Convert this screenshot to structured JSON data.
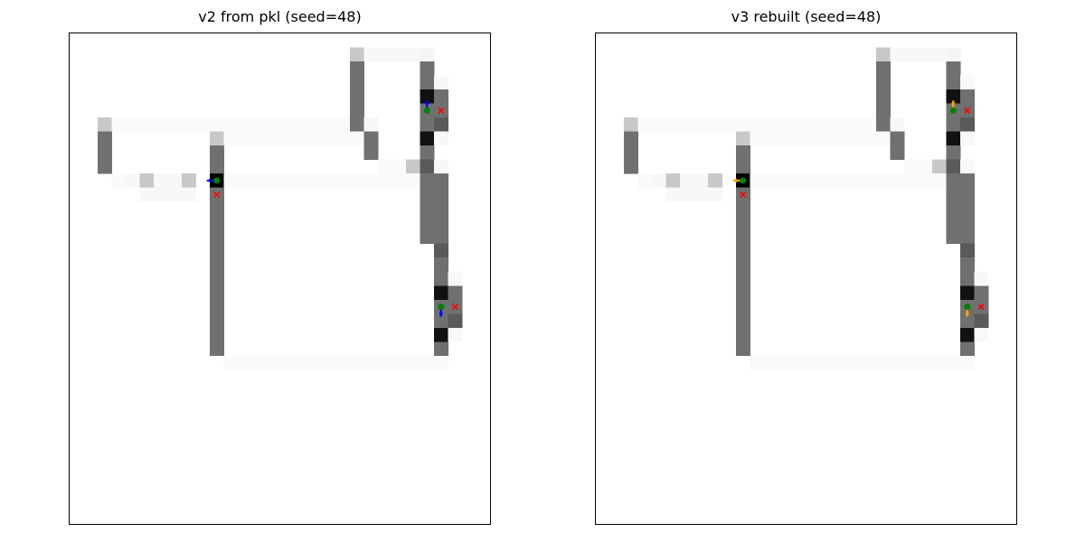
{
  "panels": [
    {
      "title": "v2 from pkl (seed=48)",
      "arrow_color": "#0000ff",
      "agents": [
        {
          "pos": [
            6.5,
            7.5
          ],
          "dir": "left",
          "target": [
            6.5,
            8.5
          ]
        },
        {
          "pos": [
            21.5,
            2.5
          ],
          "dir": "up",
          "target": [
            22.5,
            2.5
          ]
        },
        {
          "pos": [
            22.5,
            16.5
          ],
          "dir": "down",
          "target": [
            23.5,
            16.5
          ]
        }
      ]
    },
    {
      "title": "v3 rebuilt (seed=48)",
      "arrow_color": "#ffa500",
      "agents": [
        {
          "pos": [
            6.5,
            7.5
          ],
          "dir": "left",
          "target": [
            6.5,
            8.5
          ]
        },
        {
          "pos": [
            21.5,
            2.5
          ],
          "dir": "up",
          "target": [
            22.5,
            2.5
          ]
        },
        {
          "pos": [
            22.5,
            16.5
          ],
          "dir": "down",
          "target": [
            23.5,
            16.5
          ]
        }
      ]
    }
  ],
  "grid": {
    "x_range": [
      -4,
      26
    ],
    "y_range": [
      -3,
      32
    ],
    "agent_color": "#008000",
    "target_color": "#ff0000",
    "cells": [
      [
        16,
        -2,
        "#c8c8c8"
      ],
      [
        17,
        -2,
        "#f8f8f8"
      ],
      [
        18,
        -2,
        "#f8f8f8"
      ],
      [
        19,
        -2,
        "#f8f8f8"
      ],
      [
        20,
        -2,
        "#f8f8f8"
      ],
      [
        21,
        -2,
        "#f5f5f5"
      ],
      [
        16,
        -1,
        "#707070"
      ],
      [
        21,
        -1,
        "#707070"
      ],
      [
        16,
        0,
        "#707070"
      ],
      [
        21,
        0,
        "#707070"
      ],
      [
        22,
        0,
        "#f8f8f8"
      ],
      [
        16,
        1,
        "#707070"
      ],
      [
        21,
        1,
        "#111111"
      ],
      [
        22,
        1,
        "#707070"
      ],
      [
        16,
        2,
        "#707070"
      ],
      [
        21,
        2,
        "#707070"
      ],
      [
        22,
        2,
        "#707070"
      ],
      [
        -2,
        3,
        "#c8c8c8"
      ],
      [
        -1,
        3,
        "#fafafa"
      ],
      [
        0,
        3,
        "#fafafa"
      ],
      [
        1,
        3,
        "#fafafa"
      ],
      [
        2,
        3,
        "#fafafa"
      ],
      [
        3,
        3,
        "#fafafa"
      ],
      [
        4,
        3,
        "#fafafa"
      ],
      [
        5,
        3,
        "#fafafa"
      ],
      [
        6,
        3,
        "#fafafa"
      ],
      [
        7,
        3,
        "#fafafa"
      ],
      [
        8,
        3,
        "#fafafa"
      ],
      [
        9,
        3,
        "#fafafa"
      ],
      [
        10,
        3,
        "#fafafa"
      ],
      [
        11,
        3,
        "#fafafa"
      ],
      [
        12,
        3,
        "#fafafa"
      ],
      [
        13,
        3,
        "#fafafa"
      ],
      [
        14,
        3,
        "#fafafa"
      ],
      [
        15,
        3,
        "#fafafa"
      ],
      [
        16,
        3,
        "#707070"
      ],
      [
        17,
        3,
        "#f8f8f8"
      ],
      [
        21,
        3,
        "#707070"
      ],
      [
        22,
        3,
        "#5a5a5a"
      ],
      [
        -2,
        4,
        "#707070"
      ],
      [
        6,
        4,
        "#c8c8c8"
      ],
      [
        7,
        4,
        "#fafafa"
      ],
      [
        8,
        4,
        "#fafafa"
      ],
      [
        9,
        4,
        "#fafafa"
      ],
      [
        10,
        4,
        "#fafafa"
      ],
      [
        11,
        4,
        "#fafafa"
      ],
      [
        12,
        4,
        "#fafafa"
      ],
      [
        13,
        4,
        "#fafafa"
      ],
      [
        14,
        4,
        "#fafafa"
      ],
      [
        15,
        4,
        "#fafafa"
      ],
      [
        16,
        4,
        "#fafafa"
      ],
      [
        17,
        4,
        "#707070"
      ],
      [
        21,
        4,
        "#111111"
      ],
      [
        22,
        4,
        "#f8f8f8"
      ],
      [
        -2,
        5,
        "#707070"
      ],
      [
        6,
        5,
        "#707070"
      ],
      [
        17,
        5,
        "#707070"
      ],
      [
        21,
        5,
        "#707070"
      ],
      [
        -2,
        6,
        "#707070"
      ],
      [
        6,
        6,
        "#707070"
      ],
      [
        18,
        6,
        "#fafafa"
      ],
      [
        19,
        6,
        "#fafafa"
      ],
      [
        20,
        6,
        "#c8c8c8"
      ],
      [
        21,
        6,
        "#5a5a5a"
      ],
      [
        22,
        6,
        "#f8f8f8"
      ],
      [
        -1,
        7,
        "#fafafa"
      ],
      [
        0,
        7,
        "#f8f8f8"
      ],
      [
        1,
        7,
        "#c8c8c8"
      ],
      [
        2,
        7,
        "#f8f8f8"
      ],
      [
        3,
        7,
        "#f8f8f8"
      ],
      [
        4,
        7,
        "#c8c8c8"
      ],
      [
        6,
        7,
        "#000000"
      ],
      [
        7,
        7,
        "#fafafa"
      ],
      [
        8,
        7,
        "#fafafa"
      ],
      [
        9,
        7,
        "#fafafa"
      ],
      [
        10,
        7,
        "#fafafa"
      ],
      [
        11,
        7,
        "#fafafa"
      ],
      [
        12,
        7,
        "#fafafa"
      ],
      [
        13,
        7,
        "#fafafa"
      ],
      [
        14,
        7,
        "#fafafa"
      ],
      [
        15,
        7,
        "#fafafa"
      ],
      [
        16,
        7,
        "#fafafa"
      ],
      [
        17,
        7,
        "#fafafa"
      ],
      [
        18,
        7,
        "#fafafa"
      ],
      [
        19,
        7,
        "#fafafa"
      ],
      [
        20,
        7,
        "#fafafa"
      ],
      [
        21,
        7,
        "#707070"
      ],
      [
        22,
        7,
        "#707070"
      ],
      [
        1,
        8,
        "#f8f8f8"
      ],
      [
        2,
        8,
        "#f8f8f8"
      ],
      [
        3,
        8,
        "#f8f8f8"
      ],
      [
        4,
        8,
        "#f8f8f8"
      ],
      [
        6,
        8,
        "#707070"
      ],
      [
        21,
        8,
        "#707070"
      ],
      [
        22,
        8,
        "#707070"
      ],
      [
        6,
        9,
        "#707070"
      ],
      [
        21,
        9,
        "#707070"
      ],
      [
        22,
        9,
        "#707070"
      ],
      [
        6,
        10,
        "#707070"
      ],
      [
        21,
        10,
        "#707070"
      ],
      [
        22,
        10,
        "#707070"
      ],
      [
        6,
        11,
        "#707070"
      ],
      [
        21,
        11,
        "#707070"
      ],
      [
        22,
        11,
        "#707070"
      ],
      [
        6,
        12,
        "#707070"
      ],
      [
        22,
        12,
        "#5a5a5a"
      ],
      [
        6,
        13,
        "#707070"
      ],
      [
        22,
        13,
        "#707070"
      ],
      [
        6,
        14,
        "#707070"
      ],
      [
        22,
        14,
        "#707070"
      ],
      [
        23,
        14,
        "#f8f8f8"
      ],
      [
        6,
        15,
        "#707070"
      ],
      [
        22,
        15,
        "#111111"
      ],
      [
        23,
        15,
        "#707070"
      ],
      [
        6,
        16,
        "#707070"
      ],
      [
        22,
        16,
        "#707070"
      ],
      [
        23,
        16,
        "#707070"
      ],
      [
        6,
        17,
        "#707070"
      ],
      [
        22,
        17,
        "#707070"
      ],
      [
        23,
        17,
        "#5a5a5a"
      ],
      [
        6,
        18,
        "#707070"
      ],
      [
        22,
        18,
        "#111111"
      ],
      [
        23,
        18,
        "#f8f8f8"
      ],
      [
        6,
        19,
        "#707070"
      ],
      [
        22,
        19,
        "#707070"
      ],
      [
        7,
        20,
        "#fafafa"
      ],
      [
        8,
        20,
        "#fafafa"
      ],
      [
        9,
        20,
        "#fafafa"
      ],
      [
        10,
        20,
        "#fafafa"
      ],
      [
        11,
        20,
        "#fafafa"
      ],
      [
        12,
        20,
        "#fafafa"
      ],
      [
        13,
        20,
        "#fafafa"
      ],
      [
        14,
        20,
        "#fafafa"
      ],
      [
        15,
        20,
        "#fafafa"
      ],
      [
        16,
        20,
        "#fafafa"
      ],
      [
        17,
        20,
        "#fafafa"
      ],
      [
        18,
        20,
        "#fafafa"
      ],
      [
        19,
        20,
        "#fafafa"
      ],
      [
        20,
        20,
        "#fafafa"
      ],
      [
        21,
        20,
        "#fafafa"
      ],
      [
        22,
        20,
        "#fafafa"
      ]
    ]
  }
}
